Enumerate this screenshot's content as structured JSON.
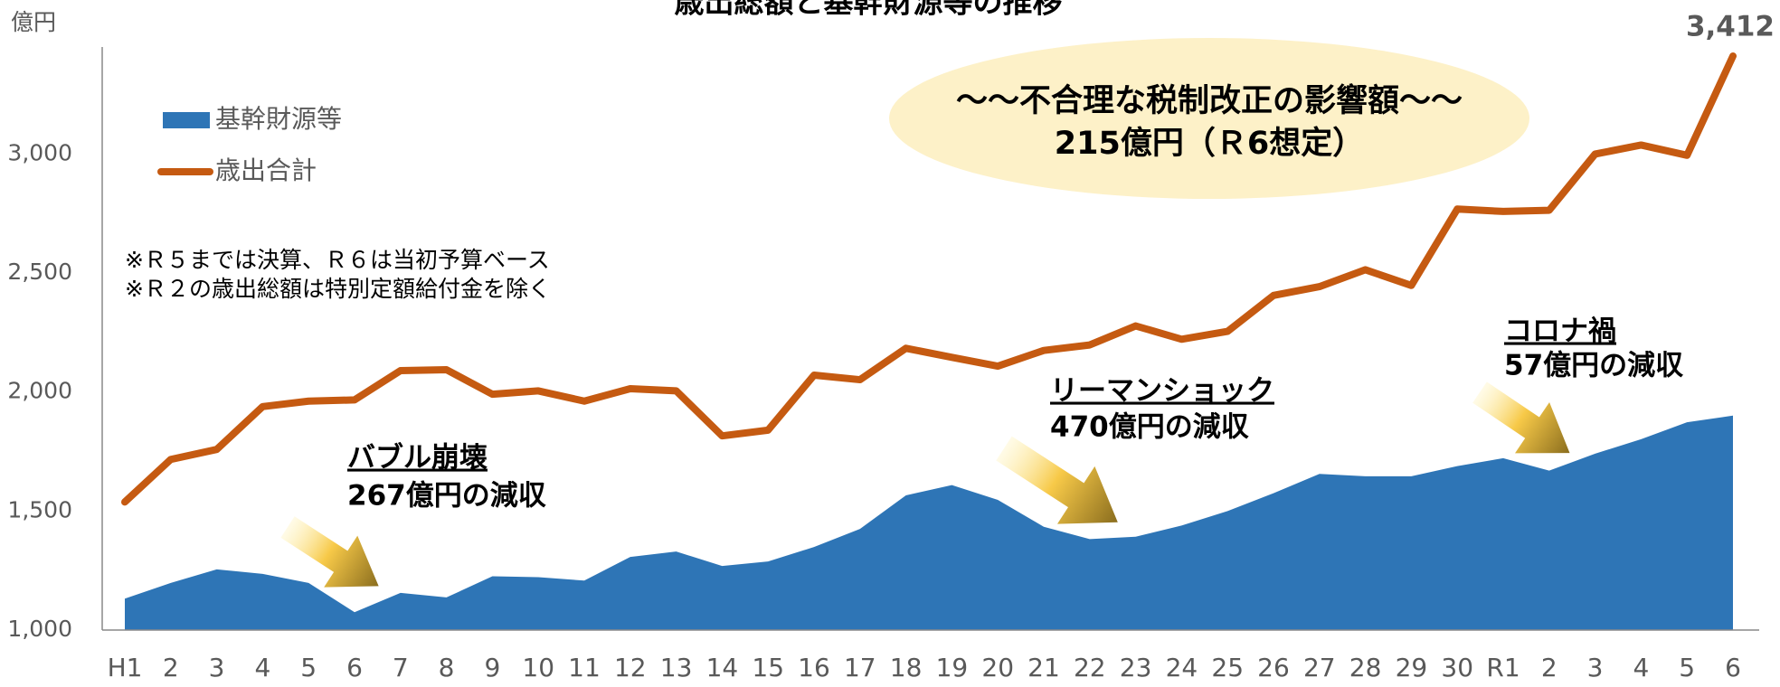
{
  "chart_data": {
    "type": "line",
    "title": "歳出総額と基幹財源等の推移",
    "y_unit": "億円",
    "categories": [
      "H1",
      "2",
      "3",
      "4",
      "5",
      "6",
      "7",
      "8",
      "9",
      "10",
      "11",
      "12",
      "13",
      "14",
      "15",
      "16",
      "17",
      "18",
      "19",
      "20",
      "21",
      "22",
      "23",
      "24",
      "25",
      "26",
      "27",
      "28",
      "29",
      "30",
      "R1",
      "2",
      "3",
      "4",
      "5",
      "6"
    ],
    "series": [
      {
        "name": "基幹財源等",
        "kind": "area",
        "color": "#2e75b6",
        "values": [
          1132,
          1198,
          1255,
          1236,
          1198,
          1075,
          1156,
          1137,
          1226,
          1222,
          1208,
          1307,
          1330,
          1269,
          1288,
          1349,
          1425,
          1566,
          1609,
          1547,
          1434,
          1382,
          1392,
          1439,
          1500,
          1575,
          1656,
          1646,
          1646,
          1689,
          1722,
          1670,
          1741,
          1802,
          1873,
          1901
        ]
      },
      {
        "name": "歳出合計",
        "kind": "line",
        "color": "#c55a11",
        "values": [
          1538,
          1717,
          1759,
          1939,
          1962,
          1967,
          2090,
          2094,
          1991,
          2005,
          1962,
          2014,
          2005,
          1816,
          1840,
          2071,
          2052,
          2184,
          2146,
          2109,
          2175,
          2198,
          2278,
          2222,
          2255,
          2406,
          2443,
          2514,
          2448,
          2769,
          2759,
          2764,
          3000,
          3038,
          2995,
          3412
        ],
        "value_labels": {
          "35": "3,412"
        }
      }
    ],
    "ylim": [
      1000,
      3450
    ],
    "yticks": [
      {
        "value": 1000,
        "label": "1,000"
      },
      {
        "value": 1500,
        "label": "1,500"
      },
      {
        "value": 2000,
        "label": "2,000"
      },
      {
        "value": 2500,
        "label": "2,500"
      },
      {
        "value": 3000,
        "label": "3,000"
      }
    ],
    "grid": false,
    "legend": "upper left",
    "notes": [
      "※Ｒ５までは決算、Ｒ６は当初予算ベース",
      "※Ｒ２の歳出総額は特別定額給付金を除く"
    ],
    "highlight": [
      "～～不合理な税制改正の影響額～～",
      "215億円（Ｒ6想定）"
    ],
    "annotations": [
      {
        "title": "バブル崩壊",
        "text": "267億円の減収"
      },
      {
        "title": "リーマンショック",
        "text": "470億円の減収"
      },
      {
        "title": "コロナ禍",
        "text": "57億円の減収"
      }
    ]
  }
}
